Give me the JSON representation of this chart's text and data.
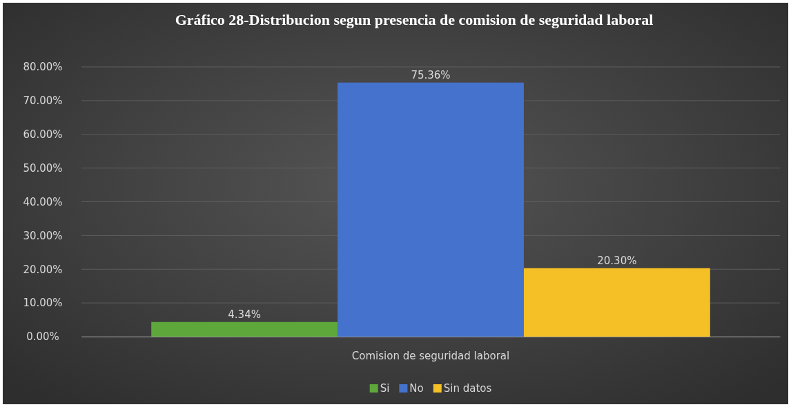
{
  "chart_data": {
    "type": "bar",
    "title": "Gráfico 28-Distribucion segun presencia de comision de seguridad laboral",
    "categories": [
      "Comision de seguridad laboral"
    ],
    "series": [
      {
        "name": "Si",
        "color": "#5ea83b",
        "values": [
          4.34
        ],
        "value_labels": [
          "4.34%"
        ]
      },
      {
        "name": "No",
        "color": "#4472cc",
        "values": [
          75.36
        ],
        "value_labels": [
          "75.36%"
        ]
      },
      {
        "name": "Sin datos",
        "color": "#f5c025",
        "values": [
          20.3
        ],
        "value_labels": [
          "20.30%"
        ]
      }
    ],
    "ylim": [
      0,
      80
    ],
    "yticks": [
      {
        "value": 0,
        "label": "0.00%"
      },
      {
        "value": 10,
        "label": "10.00%"
      },
      {
        "value": 20,
        "label": "20.00%"
      },
      {
        "value": 30,
        "label": "30.00%"
      },
      {
        "value": 40,
        "label": "40.00%"
      },
      {
        "value": 50,
        "label": "50.00%"
      },
      {
        "value": 60,
        "label": "60.00%"
      },
      {
        "value": 70,
        "label": "70.00%"
      },
      {
        "value": 80,
        "label": "80.00%"
      }
    ],
    "grid": "y",
    "legend": "bottom"
  }
}
